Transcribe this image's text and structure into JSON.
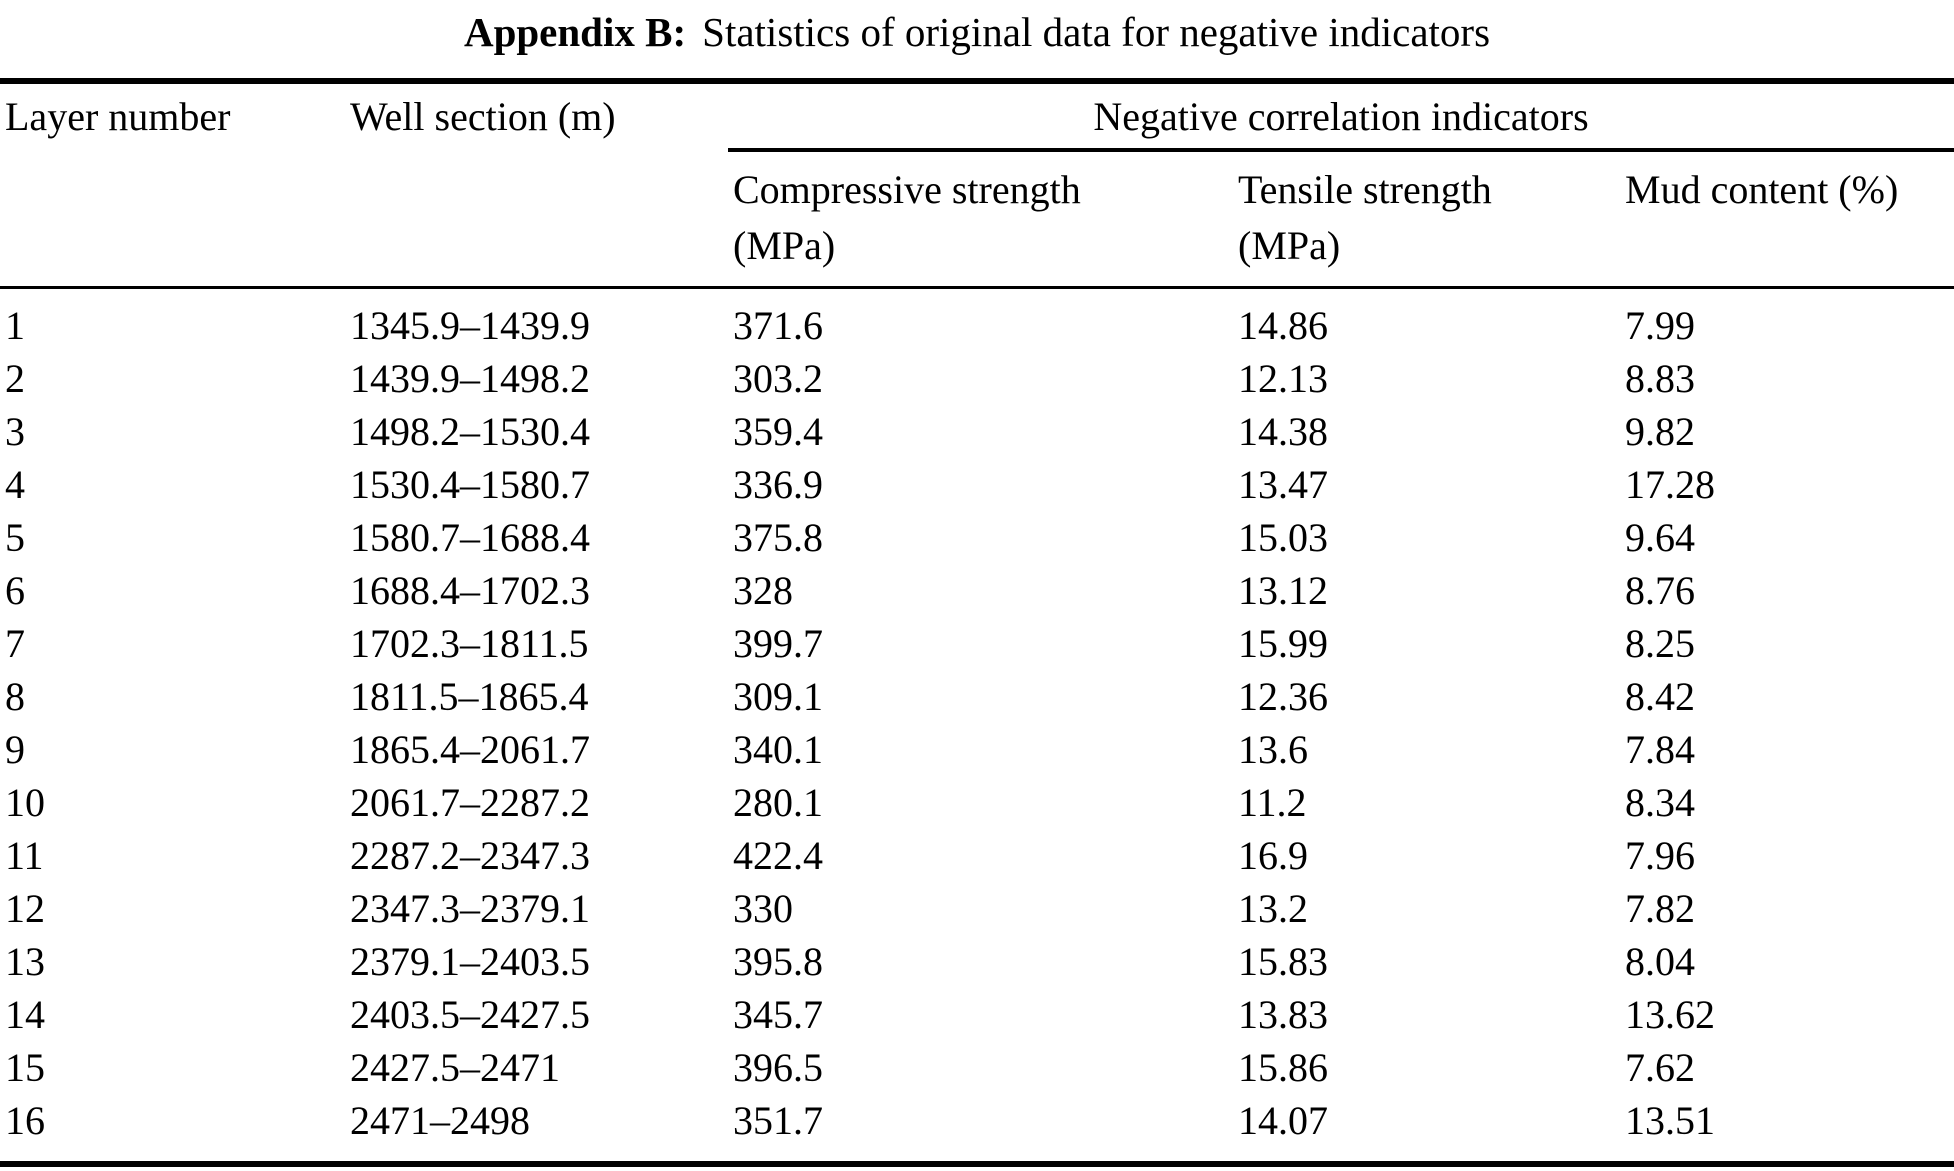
{
  "title": {
    "label": "Appendix B:",
    "text": "Statistics of original data for negative indicators"
  },
  "table": {
    "columns": {
      "layer": "Layer number",
      "well": "Well section (m)",
      "group": "Negative correlation indicators",
      "compressive_line1": "Compressive strength",
      "compressive_line2": "(MPa)",
      "tensile_line1": "Tensile strength",
      "tensile_line2": "(MPa)",
      "mud": "Mud content (%)"
    },
    "rows": [
      [
        "1",
        "1345.9–1439.9",
        "371.6",
        "14.86",
        "7.99"
      ],
      [
        "2",
        "1439.9–1498.2",
        "303.2",
        "12.13",
        "8.83"
      ],
      [
        "3",
        "1498.2–1530.4",
        "359.4",
        "14.38",
        "9.82"
      ],
      [
        "4",
        "1530.4–1580.7",
        "336.9",
        "13.47",
        "17.28"
      ],
      [
        "5",
        "1580.7–1688.4",
        "375.8",
        "15.03",
        "9.64"
      ],
      [
        "6",
        "1688.4–1702.3",
        "328",
        "13.12",
        "8.76"
      ],
      [
        "7",
        "1702.3–1811.5",
        "399.7",
        "15.99",
        "8.25"
      ],
      [
        "8",
        "1811.5–1865.4",
        "309.1",
        "12.36",
        "8.42"
      ],
      [
        "9",
        "1865.4–2061.7",
        "340.1",
        "13.6",
        "7.84"
      ],
      [
        "10",
        "2061.7–2287.2",
        "280.1",
        "11.2",
        "8.34"
      ],
      [
        "11",
        "2287.2–2347.3",
        "422.4",
        "16.9",
        "7.96"
      ],
      [
        "12",
        "2347.3–2379.1",
        "330",
        "13.2",
        "7.82"
      ],
      [
        "13",
        "2379.1–2403.5",
        "395.8",
        "15.83",
        "8.04"
      ],
      [
        "14",
        "2403.5–2427.5",
        "345.7",
        "13.83",
        "13.62"
      ],
      [
        "15",
        "2427.5–2471",
        "396.5",
        "15.86",
        "7.62"
      ],
      [
        "16",
        "2471–2498",
        "351.7",
        "14.07",
        "13.51"
      ]
    ]
  }
}
